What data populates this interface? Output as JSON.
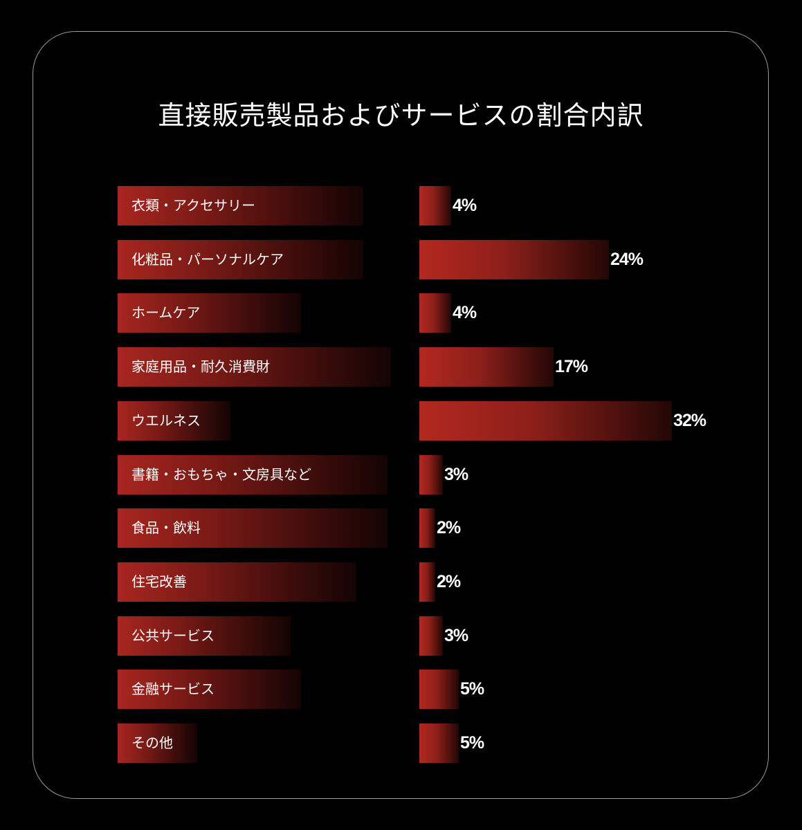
{
  "chart_data": {
    "type": "bar",
    "orientation": "horizontal",
    "title": "直接販売製品およびサービスの割合内訳",
    "categories": [
      "衣類・アクセサリー",
      "化粧品・パーソナルケア",
      "ホームケア",
      "家庭用品・耐久消費財",
      "ウエルネス",
      "書籍・おもちゃ・文房具など",
      "食品・飲料",
      "住宅改善",
      "公共サービス",
      "金融サービス",
      "その他"
    ],
    "values": [
      4,
      24,
      4,
      17,
      32,
      3,
      2,
      2,
      3,
      5,
      5
    ],
    "value_labels": [
      "4%",
      "24%",
      "4%",
      "17%",
      "32%",
      "3%",
      "2%",
      "2%",
      "3%",
      "5%",
      "5%"
    ],
    "unit": "%",
    "xlim": [
      0,
      32
    ],
    "grid": false,
    "legend": "none",
    "colors": {
      "bar": "#b3281f",
      "background": "#000000",
      "text": "#ffffff",
      "frame": "#9a9a9a"
    }
  }
}
